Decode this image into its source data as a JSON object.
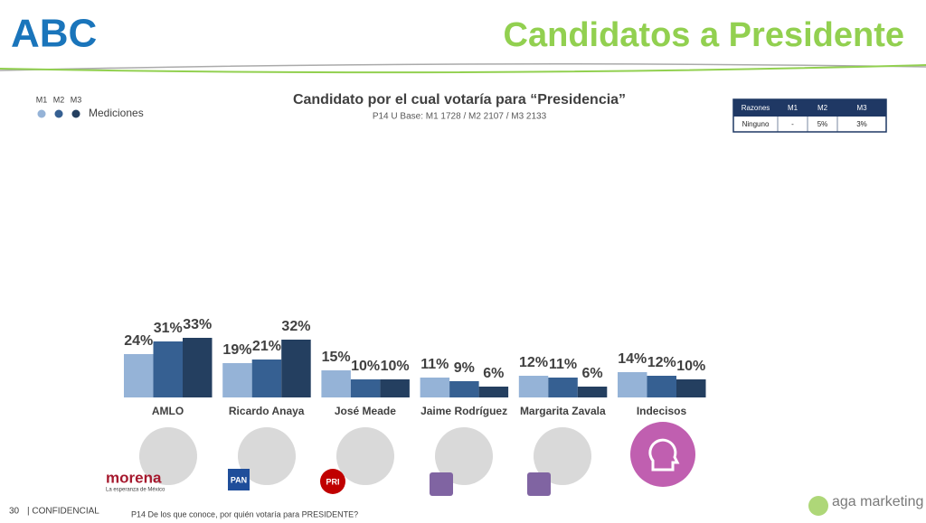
{
  "header": {
    "logo": "ABC",
    "title": "Candidatos a Presidente"
  },
  "legend_label": "Mediciones",
  "chart_data": {
    "type": "bar",
    "title": "Candidato por el cual votaría para “Presidencia”",
    "subtitle": "P14 U Base: M1 1728 / M2 2107  / M3 2133",
    "categories": [
      "AMLO",
      "Ricardo Anaya",
      "José Meade",
      "Jaime Rodríguez",
      "Margarita Zavala",
      "Indecisos"
    ],
    "series": [
      {
        "name": "M1",
        "color": "#95b3d7",
        "values": [
          24,
          19,
          15,
          11,
          12,
          14
        ],
        "value_labels": [
          "24%",
          "19%",
          "15%",
          "11%",
          "12%",
          "14%"
        ]
      },
      {
        "name": "M2",
        "color": "#366092",
        "values": [
          31,
          21,
          10,
          9,
          11,
          12
        ],
        "value_labels": [
          "31%",
          "21%",
          "10%",
          "9%",
          "11%",
          "12%"
        ]
      },
      {
        "name": "M3",
        "color": "#243f60",
        "values": [
          33,
          32,
          10,
          6,
          6,
          10
        ],
        "value_labels": [
          "33%",
          "32%",
          "10%",
          "6%",
          "6%",
          "10%"
        ]
      }
    ]
  },
  "table": {
    "header": [
      "Razones",
      "M1",
      "M2",
      "M3"
    ],
    "rows": [
      [
        "Ninguno",
        "-",
        "5%",
        "3%"
      ]
    ]
  },
  "logos": {
    "morena": "morena",
    "morena_tagline": "La esperanza de México",
    "pan": "PAN",
    "pri": "PRI"
  },
  "footer": {
    "page": "30",
    "confidential": "| CONFIDENCIAL",
    "question": "P14 De los que conoce, por quién votaría para PRESIDENTE?",
    "brand": "aga marketing"
  }
}
